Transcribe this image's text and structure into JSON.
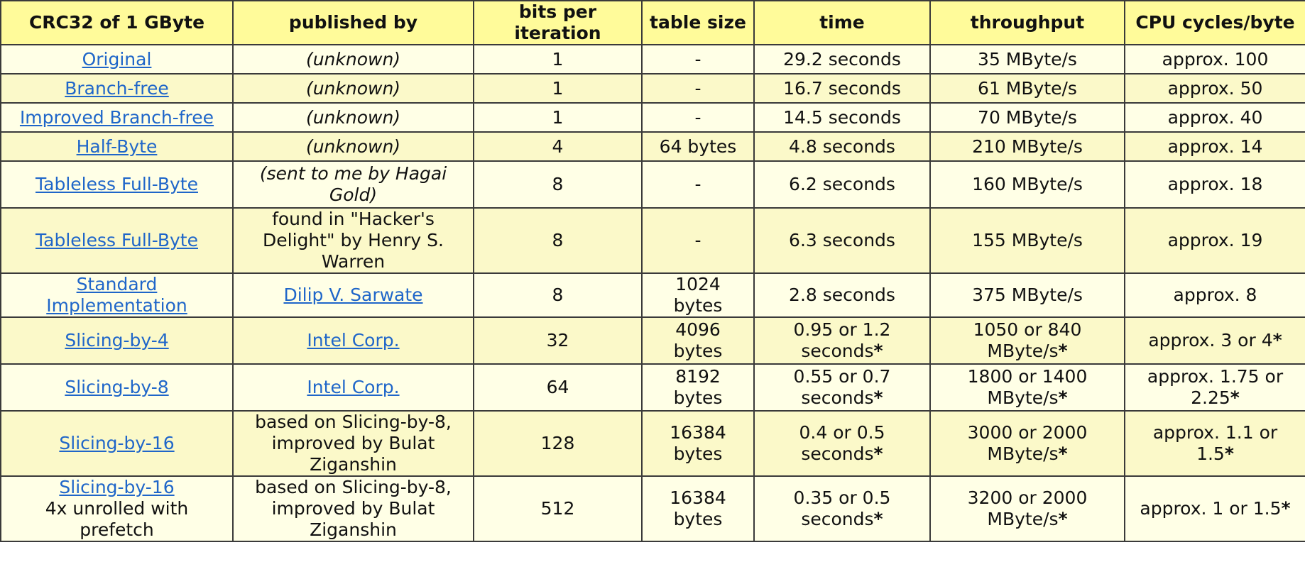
{
  "headers": [
    "CRC32 of 1 GByte",
    "published by",
    "bits per iteration",
    "table size",
    "time",
    "throughput",
    "CPU cycles/byte"
  ],
  "rows": [
    {
      "name": "Original",
      "name_link": true,
      "name_note": "",
      "pub": "(unknown)",
      "pub_italic": true,
      "pub_link": false,
      "bits": "1",
      "table": "-",
      "time": "29.2 seconds",
      "throughput": "35 MByte/s",
      "cycles": "approx. 100",
      "h": 41
    },
    {
      "name": "Branch-free",
      "name_link": true,
      "name_note": "",
      "pub": "(unknown)",
      "pub_italic": true,
      "pub_link": false,
      "bits": "1",
      "table": "-",
      "time": "16.7 seconds",
      "throughput": "61 MByte/s",
      "cycles": "approx. 50",
      "h": 41
    },
    {
      "name": "Improved Branch-free",
      "name_link": true,
      "name_note": "",
      "pub": "(unknown)",
      "pub_italic": true,
      "pub_link": false,
      "bits": "1",
      "table": "-",
      "time": "14.5 seconds",
      "throughput": "70 MByte/s",
      "cycles": "approx. 40",
      "h": 41
    },
    {
      "name": "Half-Byte",
      "name_link": true,
      "name_note": "",
      "pub": "(unknown)",
      "pub_italic": true,
      "pub_link": false,
      "bits": "4",
      "table": "64 bytes",
      "time": "4.8 seconds",
      "throughput": "210 MByte/s",
      "cycles": "approx. 14",
      "h": 41
    },
    {
      "name": "Tableless Full-Byte",
      "name_link": true,
      "name_note": "",
      "pub": "(sent to me by Hagai Gold)",
      "pub_italic": true,
      "pub_link": false,
      "bits": "8",
      "table": "-",
      "time": "6.2 seconds",
      "throughput": "160 MByte/s",
      "cycles": "approx. 18",
      "h": 66
    },
    {
      "name": "Tableless Full-Byte",
      "name_link": true,
      "name_note": "",
      "pub": "found in \"Hacker's Delight\" by Henry S. Warren",
      "pub_italic": false,
      "pub_link": false,
      "bits": "8",
      "table": "-",
      "time": "6.3 seconds",
      "throughput": "155 MByte/s",
      "cycles": "approx. 19",
      "h": 66
    },
    {
      "name": "Standard Implementation",
      "name_link": true,
      "name_note": "",
      "pub": "Dilip V. Sarwate",
      "pub_italic": false,
      "pub_link": true,
      "bits": "8",
      "table": "1024 bytes",
      "time": "2.8 seconds",
      "throughput": "375 MByte/s",
      "cycles": "approx. 8",
      "h": 41
    },
    {
      "name": "Slicing-by-4",
      "name_link": true,
      "name_note": "",
      "pub": "Intel Corp.",
      "pub_italic": false,
      "pub_link": true,
      "bits": "32",
      "table": "4096 bytes",
      "time": "0.95 or 1.2 seconds*",
      "throughput": "1050 or 840 MByte/s*",
      "cycles": "approx. 3 or 4*",
      "h": 66
    },
    {
      "name": "Slicing-by-8",
      "name_link": true,
      "name_note": "",
      "pub": "Intel Corp.",
      "pub_italic": false,
      "pub_link": true,
      "bits": "64",
      "table": "8192 bytes",
      "time": "0.55 or 0.7 seconds*",
      "throughput": "1800 or 1400 MByte/s*",
      "cycles": "approx. 1.75 or 2.25*",
      "h": 66
    },
    {
      "name": "Slicing-by-16",
      "name_link": true,
      "name_note": "",
      "pub": "based on Slicing-by-8, improved by Bulat Ziganshin",
      "pub_italic": false,
      "pub_link": false,
      "bits": "128",
      "table": "16384 bytes",
      "time": "0.4 or 0.5 seconds*",
      "throughput": "3000 or 2000 MByte/s*",
      "cycles": "approx. 1.1 or 1.5*",
      "h": 92
    },
    {
      "name": "Slicing-by-16",
      "name_link": true,
      "name_note": "4x unrolled with prefetch",
      "pub": "based on Slicing-by-8, improved by Bulat Ziganshin",
      "pub_italic": false,
      "pub_link": false,
      "bits": "512",
      "table": "16384 bytes",
      "time": "0.35 or 0.5 seconds*",
      "throughput": "3200 or 2000 MByte/s*",
      "cycles": "approx. 1 or 1.5*",
      "h": 92
    }
  ]
}
